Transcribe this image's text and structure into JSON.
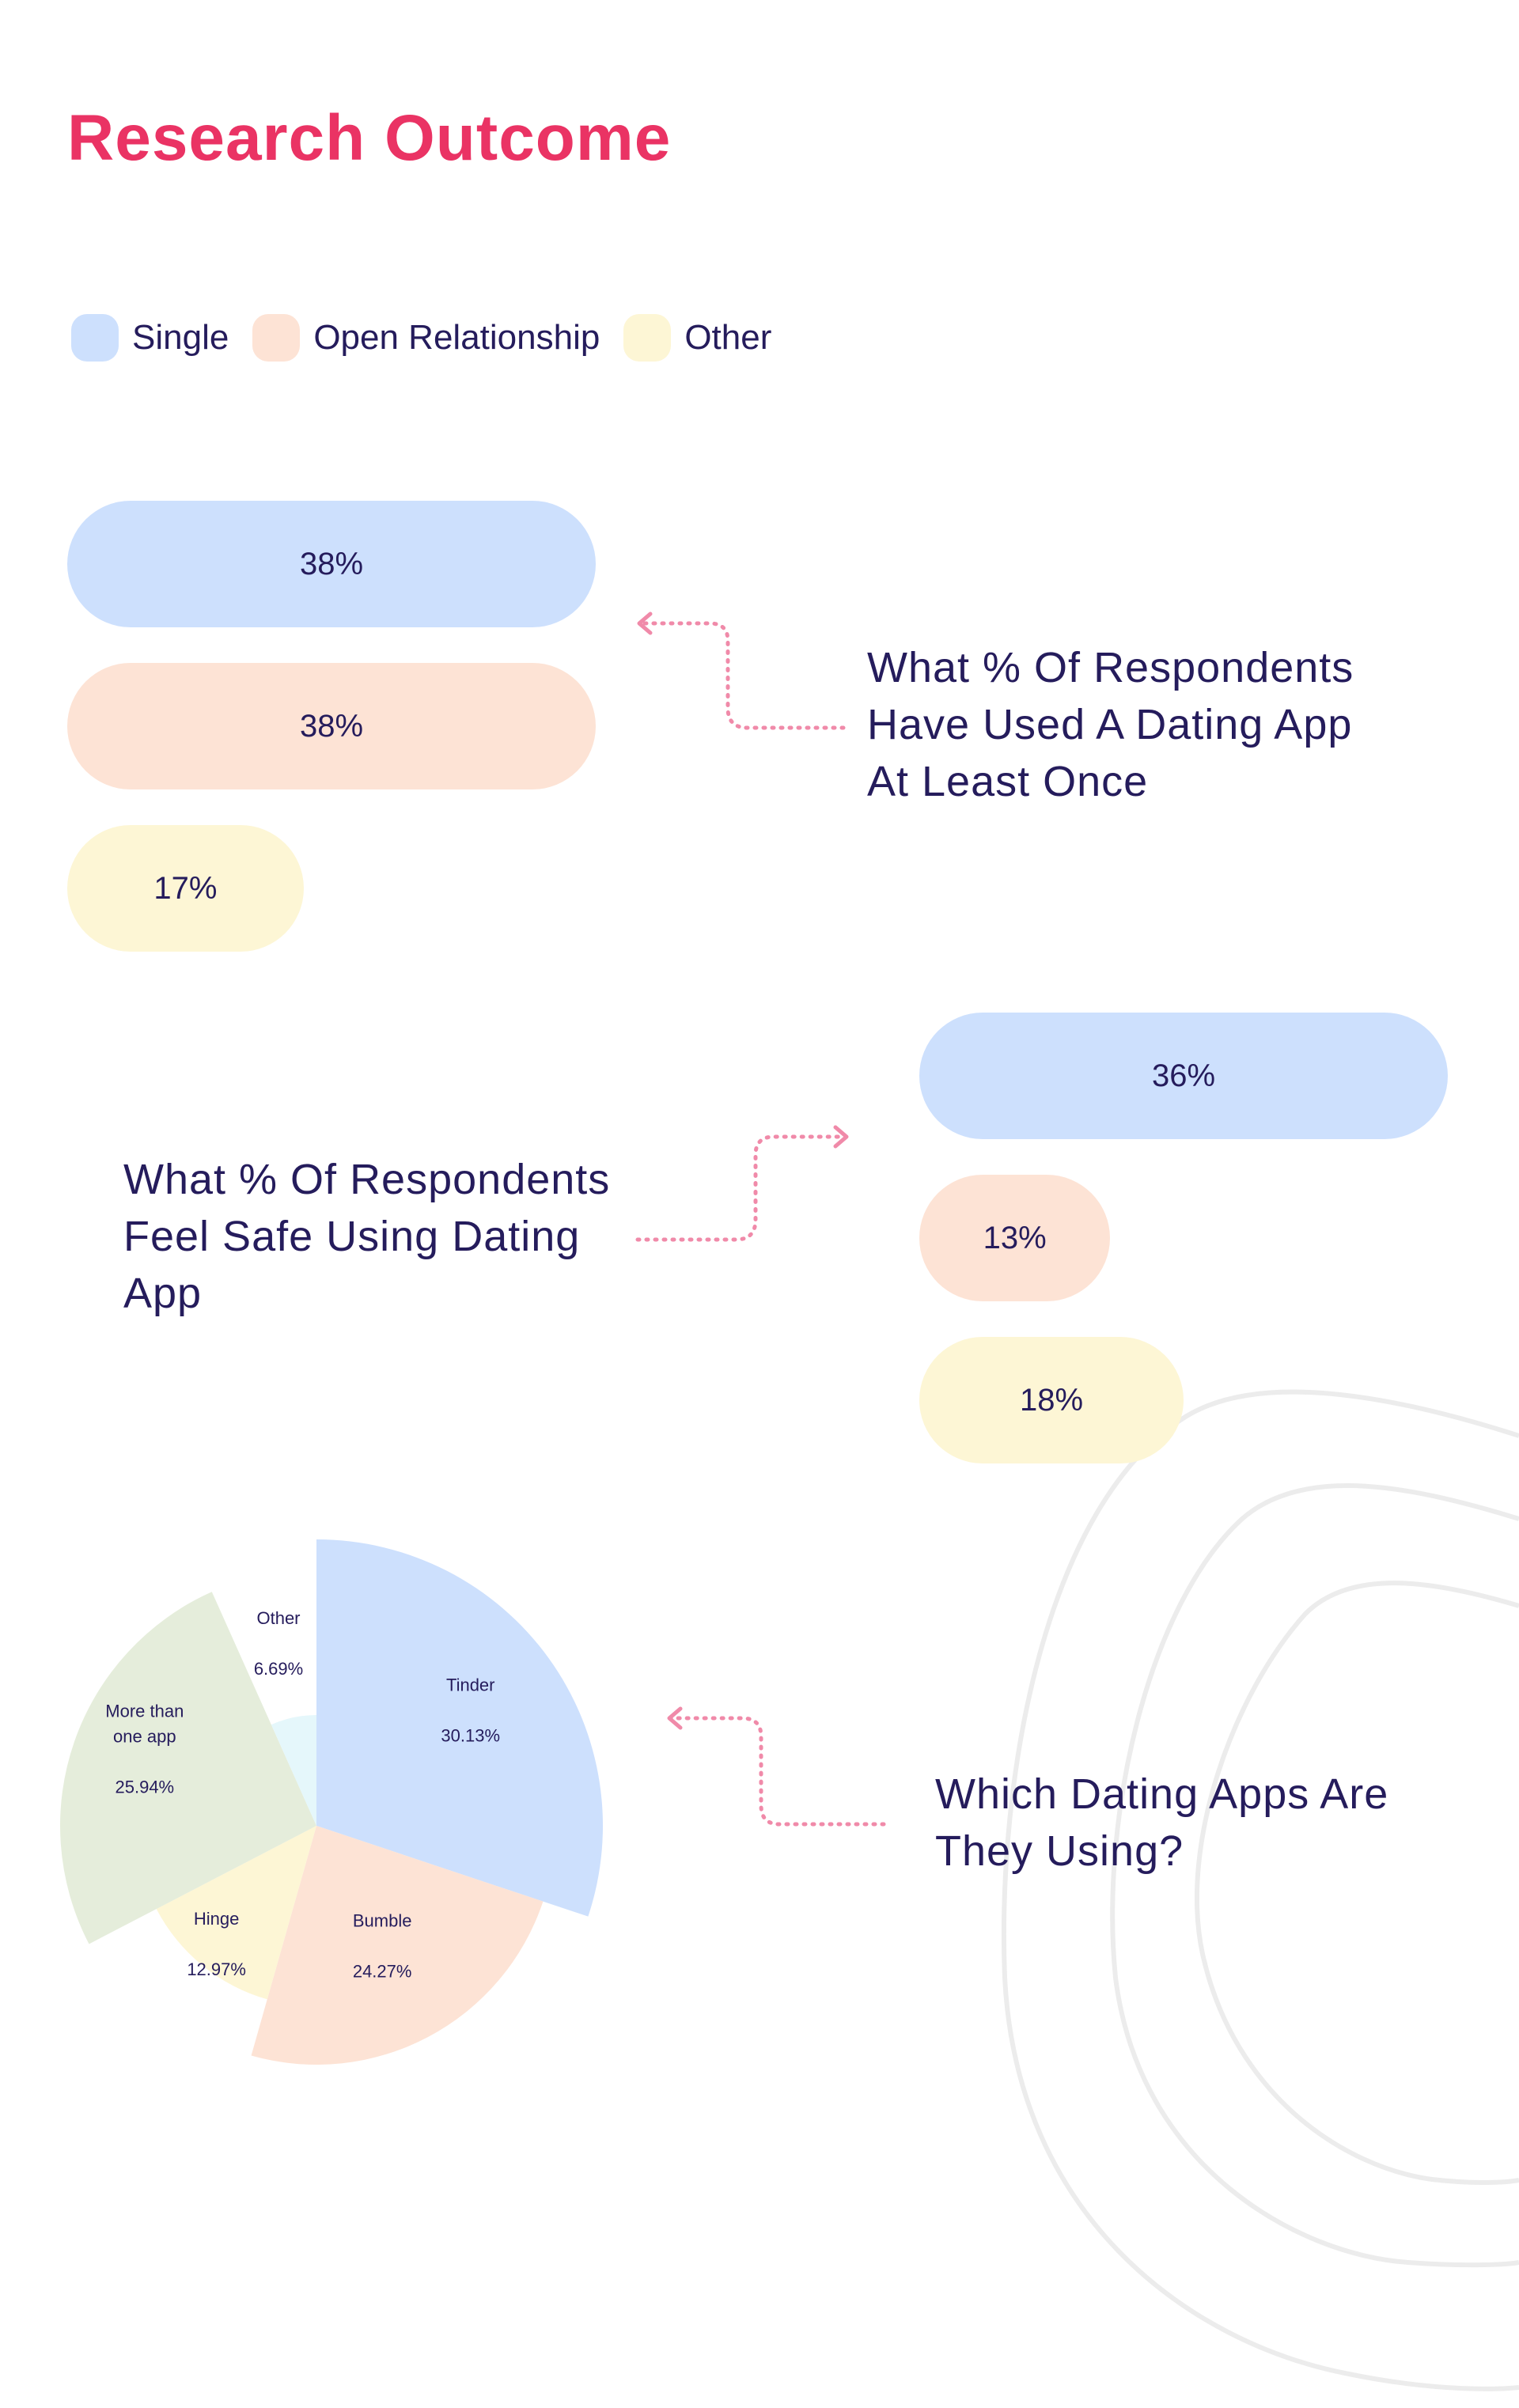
{
  "title": "Research Outcome",
  "legend": [
    {
      "label": "Single",
      "color": "#cde0fd"
    },
    {
      "label": "Open Relationship",
      "color": "#fde3d5"
    },
    {
      "label": "Other",
      "color": "#fdf6d5"
    }
  ],
  "chart_data": [
    {
      "type": "bar",
      "title": "What % Of Respondents Have Used A Dating App At Least Once",
      "categories": [
        "Single",
        "Open Relationship",
        "Other"
      ],
      "values": [
        38,
        38,
        17
      ],
      "labels": [
        "38%",
        "38%",
        "17%"
      ],
      "colors": [
        "#cde0fd",
        "#fde3d5",
        "#fdf6d5"
      ]
    },
    {
      "type": "bar",
      "title": "What % Of Respondents Feel Safe Using Dating App",
      "categories": [
        "Single",
        "Open Relationship",
        "Other"
      ],
      "values": [
        36,
        13,
        18
      ],
      "labels": [
        "36%",
        "13%",
        "18%"
      ],
      "colors": [
        "#cde0fd",
        "#fde3d5",
        "#fdf6d5"
      ]
    },
    {
      "type": "pie",
      "title": "Which Dating Apps Are They Using?",
      "slices": [
        {
          "name": "Tinder",
          "value": 30.13,
          "label": "30.13%",
          "color": "#cde0fd"
        },
        {
          "name": "Bumble",
          "value": 24.27,
          "label": "24.27%",
          "color": "#fde3d5"
        },
        {
          "name": "Hinge",
          "value": 12.97,
          "label": "12.97%",
          "color": "#fdf6d5"
        },
        {
          "name": "More than one app",
          "value": 25.94,
          "label": "25.94%",
          "color": "#e5eddb"
        },
        {
          "name": "Other",
          "value": 6.69,
          "label": "6.69%",
          "color": "#e5f7fb"
        }
      ]
    }
  ],
  "questions": {
    "q1_lines": [
      "What % Of Respondents",
      "Have Used A Dating App",
      "At Least Once"
    ],
    "q2_lines": [
      "What % Of Respondents",
      "Feel Safe Using Dating",
      "App"
    ],
    "q3_lines": [
      "Which Dating Apps Are",
      "They Using?"
    ]
  },
  "colors": {
    "title": "#ea3364",
    "text": "#251c5c",
    "arrow": "#f08aa9",
    "decor": "#ececec"
  }
}
